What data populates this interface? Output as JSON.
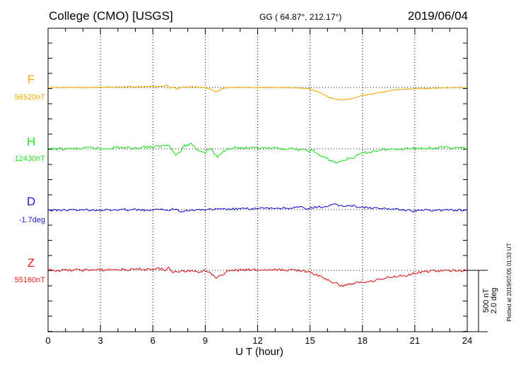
{
  "header": {
    "station": "College (CMO)  [USGS]",
    "coords": "GG ( 64.87°, 212.17°)",
    "date": "2019/06/04"
  },
  "side_note": "Plotted at 2019/07/05 01:33 UT",
  "scale": {
    "line1": "500 nT",
    "line2": "2.0 deg"
  },
  "colors": {
    "F": "#f5a800",
    "H": "#22e222",
    "D": "#1a1ad6",
    "Z": "#e01c1c"
  },
  "chart_data": {
    "type": "line",
    "xlabel": "U T (hour)",
    "xlim": [
      0,
      24
    ],
    "xticks": [
      "0",
      "3",
      "6",
      "9",
      "12",
      "15",
      "18",
      "21",
      "24"
    ],
    "grid": true,
    "series": [
      {
        "name": "F",
        "baseline_label": "56520nT",
        "color": "#f5a800",
        "points": [
          [
            0,
            0
          ],
          [
            1,
            0
          ],
          [
            2,
            0
          ],
          [
            3,
            3
          ],
          [
            4,
            6
          ],
          [
            5,
            10
          ],
          [
            5.5,
            12
          ],
          [
            6,
            14
          ],
          [
            6.4,
            20
          ],
          [
            6.6,
            16
          ],
          [
            6.8,
            33
          ],
          [
            7.0,
            -10
          ],
          [
            7.2,
            8
          ],
          [
            7.4,
            -20
          ],
          [
            7.6,
            6
          ],
          [
            7.8,
            0
          ],
          [
            8.0,
            8
          ],
          [
            8.3,
            12
          ],
          [
            8.6,
            8
          ],
          [
            9.0,
            -5
          ],
          [
            9.3,
            -20
          ],
          [
            9.6,
            -70
          ],
          [
            9.9,
            -25
          ],
          [
            10.2,
            -5
          ],
          [
            10.8,
            0
          ],
          [
            12,
            0
          ],
          [
            14,
            0
          ],
          [
            14.8,
            -10
          ],
          [
            15.5,
            -60
          ],
          [
            16,
            -130
          ],
          [
            16.5,
            -170
          ],
          [
            17,
            -175
          ],
          [
            17.5,
            -150
          ],
          [
            18,
            -110
          ],
          [
            18.5,
            -95
          ],
          [
            19,
            -70
          ],
          [
            19.5,
            -50
          ],
          [
            20,
            -30
          ],
          [
            20.5,
            -25
          ],
          [
            21,
            -15
          ],
          [
            21.5,
            -15
          ],
          [
            22,
            -10
          ],
          [
            22.5,
            -5
          ],
          [
            23,
            -3
          ],
          [
            24,
            0
          ]
        ]
      },
      {
        "name": "H",
        "baseline_label": "12430nT",
        "color": "#22e222",
        "points": [
          [
            0,
            0
          ],
          [
            1,
            0
          ],
          [
            2,
            5
          ],
          [
            2.5,
            20
          ],
          [
            3,
            0
          ],
          [
            3.5,
            10
          ],
          [
            4,
            25
          ],
          [
            4.5,
            15
          ],
          [
            5,
            10
          ],
          [
            5.5,
            30
          ],
          [
            6,
            25
          ],
          [
            6.5,
            40
          ],
          [
            6.8,
            60
          ],
          [
            7.0,
            40
          ],
          [
            7.3,
            -90
          ],
          [
            7.6,
            -30
          ],
          [
            7.8,
            40
          ],
          [
            8.2,
            75
          ],
          [
            8.6,
            -20
          ],
          [
            9.0,
            -50
          ],
          [
            9.3,
            10
          ],
          [
            9.7,
            -120
          ],
          [
            10.2,
            0
          ],
          [
            10.6,
            20
          ],
          [
            11.5,
            10
          ],
          [
            12,
            10
          ],
          [
            13,
            5
          ],
          [
            14,
            0
          ],
          [
            14.7,
            -20
          ],
          [
            15.2,
            -30
          ],
          [
            15.6,
            -100
          ],
          [
            16,
            -140
          ],
          [
            16.5,
            -200
          ],
          [
            16.8,
            -170
          ],
          [
            17,
            -150
          ],
          [
            17.5,
            -120
          ],
          [
            18,
            -60
          ],
          [
            18.5,
            -40
          ],
          [
            19,
            -15
          ],
          [
            20,
            0
          ],
          [
            21,
            10
          ],
          [
            22,
            15
          ],
          [
            23,
            20
          ],
          [
            24,
            10
          ]
        ]
      },
      {
        "name": "D",
        "baseline_label": "-1.7deg",
        "color": "#1a1ad6",
        "points": [
          [
            0,
            -10
          ],
          [
            1,
            -5
          ],
          [
            2,
            -3
          ],
          [
            3,
            -5
          ],
          [
            4,
            -5
          ],
          [
            5,
            0
          ],
          [
            5.6,
            -10
          ],
          [
            6,
            -15
          ],
          [
            6.5,
            20
          ],
          [
            6.8,
            -20
          ],
          [
            7.2,
            15
          ],
          [
            7.6,
            -20
          ],
          [
            8,
            -10
          ],
          [
            9,
            0
          ],
          [
            10,
            5
          ],
          [
            11,
            10
          ],
          [
            12,
            15
          ],
          [
            13,
            20
          ],
          [
            14,
            25
          ],
          [
            14.5,
            35
          ],
          [
            14.8,
            5
          ],
          [
            15.2,
            30
          ],
          [
            15.8,
            40
          ],
          [
            16.4,
            70
          ],
          [
            16.8,
            55
          ],
          [
            17.4,
            55
          ],
          [
            17.8,
            40
          ],
          [
            18.5,
            20
          ],
          [
            19,
            15
          ],
          [
            19.5,
            10
          ],
          [
            20,
            10
          ],
          [
            20.5,
            -10
          ],
          [
            21,
            -20
          ],
          [
            21.5,
            -5
          ],
          [
            22,
            -10
          ],
          [
            23,
            -5
          ],
          [
            24,
            -10
          ]
        ]
      },
      {
        "name": "Z",
        "baseline_label": "55160nT",
        "color": "#e01c1c",
        "points": [
          [
            0,
            0
          ],
          [
            1,
            0
          ],
          [
            2,
            5
          ],
          [
            3,
            5
          ],
          [
            4,
            10
          ],
          [
            5,
            10
          ],
          [
            5.5,
            15
          ],
          [
            6,
            20
          ],
          [
            6.5,
            25
          ],
          [
            6.7,
            -10
          ],
          [
            6.9,
            40
          ],
          [
            7.1,
            -20
          ],
          [
            7.4,
            -10
          ],
          [
            7.8,
            -15
          ],
          [
            8.2,
            -5
          ],
          [
            8.6,
            -20
          ],
          [
            9.0,
            0
          ],
          [
            9.3,
            -30
          ],
          [
            9.6,
            -120
          ],
          [
            9.9,
            -75
          ],
          [
            10.2,
            -15
          ],
          [
            10.8,
            0
          ],
          [
            11.5,
            5
          ],
          [
            12,
            5
          ],
          [
            13,
            5
          ],
          [
            14,
            5
          ],
          [
            14.5,
            0
          ],
          [
            15.2,
            -50
          ],
          [
            15.8,
            -110
          ],
          [
            16.3,
            -170
          ],
          [
            16.8,
            -220
          ],
          [
            17.2,
            -200
          ],
          [
            17.6,
            -180
          ],
          [
            18,
            -170
          ],
          [
            18.5,
            -150
          ],
          [
            19,
            -130
          ],
          [
            19.5,
            -100
          ],
          [
            20,
            -80
          ],
          [
            20.5,
            -70
          ],
          [
            21,
            -45
          ],
          [
            21.5,
            -25
          ],
          [
            22,
            -5
          ],
          [
            22.5,
            -10
          ],
          [
            23,
            -5
          ],
          [
            24,
            0
          ]
        ]
      }
    ]
  }
}
